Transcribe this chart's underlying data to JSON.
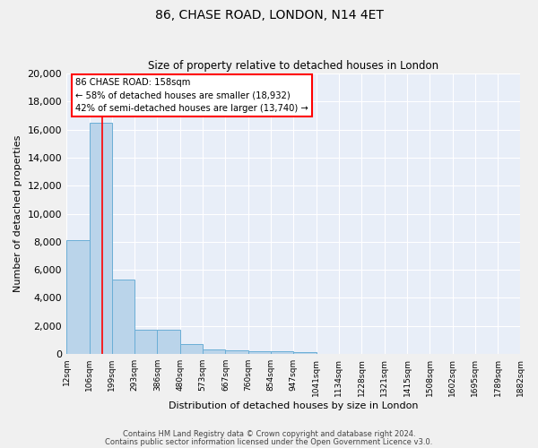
{
  "title": "86, CHASE ROAD, LONDON, N14 4ET",
  "subtitle": "Size of property relative to detached houses in London",
  "xlabel": "Distribution of detached houses by size in London",
  "ylabel": "Number of detached properties",
  "bar_color": "#bad4ea",
  "bar_edge_color": "#6aaed6",
  "background_color": "#e8eef8",
  "grid_color": "#ffffff",
  "fig_background": "#f0f0f0",
  "bin_edges": [
    12,
    106,
    199,
    293,
    386,
    480,
    573,
    667,
    760,
    854,
    947,
    1041,
    1134,
    1228,
    1321,
    1415,
    1508,
    1602,
    1695,
    1789,
    1882
  ],
  "bar_heights": [
    8100,
    16500,
    5300,
    1750,
    1750,
    700,
    300,
    250,
    200,
    200,
    150,
    0,
    0,
    0,
    0,
    0,
    0,
    0,
    0,
    0
  ],
  "red_line_x": 158,
  "annotation_title": "86 CHASE ROAD: 158sqm",
  "annotation_line1": "← 58% of detached houses are smaller (18,932)",
  "annotation_line2": "42% of semi-detached houses are larger (13,740) →",
  "ylim": [
    0,
    20000
  ],
  "yticks": [
    0,
    2000,
    4000,
    6000,
    8000,
    10000,
    12000,
    14000,
    16000,
    18000,
    20000
  ],
  "footer_line1": "Contains HM Land Registry data © Crown copyright and database right 2024.",
  "footer_line2": "Contains public sector information licensed under the Open Government Licence v3.0."
}
